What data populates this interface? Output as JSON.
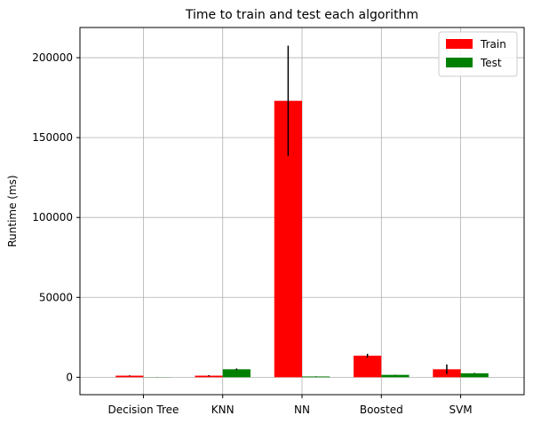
{
  "chart_data": {
    "type": "bar",
    "title": "Time to train and test each algorithm",
    "xlabel": "",
    "ylabel": "Runtime (ms)",
    "categories": [
      "Decision Tree",
      "KNN",
      "NN",
      "Boosted",
      "SVM"
    ],
    "series": [
      {
        "name": "Train",
        "color": "#ff0000",
        "values": [
          1000,
          1000,
          173000,
          13500,
          5000
        ],
        "errors": [
          200,
          300,
          34500,
          1200,
          3000
        ]
      },
      {
        "name": "Test",
        "color": "#008000",
        "values": [
          100,
          5000,
          500,
          1500,
          2500
        ],
        "errors": [
          50,
          500,
          100,
          100,
          200
        ]
      }
    ],
    "ylim": [
      -10900,
      218900
    ],
    "yticks": [
      0,
      50000,
      100000,
      150000,
      200000
    ],
    "ytick_labels": [
      "0",
      "50000",
      "100000",
      "150000",
      "200000"
    ],
    "grid": true,
    "legend_position": "top-right",
    "error_bar_color": "#000000"
  }
}
